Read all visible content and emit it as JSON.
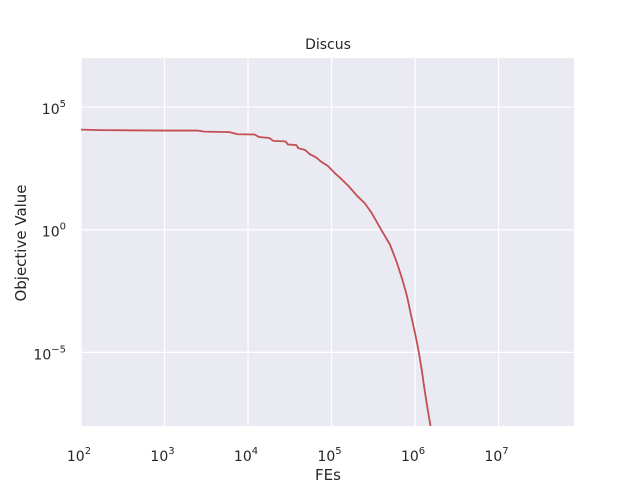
{
  "chart_data": {
    "type": "line",
    "title": "Discus",
    "xlabel": "FEs",
    "ylabel": "Objective Value",
    "x_scale": "log",
    "y_scale": "log",
    "xlim": [
      100,
      80000000
    ],
    "ylim": [
      1e-08,
      10000000.0
    ],
    "x_ticks": [
      {
        "base": "10",
        "exp": "2",
        "value": 100
      },
      {
        "base": "10",
        "exp": "3",
        "value": 1000
      },
      {
        "base": "10",
        "exp": "4",
        "value": 10000
      },
      {
        "base": "10",
        "exp": "5",
        "value": 100000
      },
      {
        "base": "10",
        "exp": "6",
        "value": 1000000
      },
      {
        "base": "10",
        "exp": "7",
        "value": 10000000
      }
    ],
    "y_ticks": [
      {
        "base": "10",
        "exp": "5",
        "value": 100000
      },
      {
        "base": "10",
        "exp": "0",
        "value": 1
      },
      {
        "base": "10",
        "exp": "−5",
        "value": 1e-05
      }
    ],
    "grid": true,
    "colors": {
      "plot_bg": "#eaeaf2",
      "grid": "#ffffff",
      "series": "#c44e52",
      "text": "#262626"
    },
    "series": [
      {
        "color": "#c44e52",
        "points": [
          [
            100,
            12000
          ],
          [
            170,
            11500
          ],
          [
            1000,
            11000
          ],
          [
            2500,
            11000
          ],
          [
            3000,
            10000
          ],
          [
            6000,
            9500
          ],
          [
            7500,
            7800
          ],
          [
            12000,
            7600
          ],
          [
            13500,
            6000
          ],
          [
            18000,
            5500
          ],
          [
            20000,
            4200
          ],
          [
            28000,
            4000
          ],
          [
            30000,
            3000
          ],
          [
            38000,
            2800
          ],
          [
            40000,
            2100
          ],
          [
            48000,
            1800
          ],
          [
            55000,
            1200
          ],
          [
            65000,
            900
          ],
          [
            75000,
            600
          ],
          [
            90000,
            400
          ],
          [
            110000,
            200
          ],
          [
            130000,
            120
          ],
          [
            160000,
            60
          ],
          [
            200000,
            25
          ],
          [
            250000,
            12
          ],
          [
            300000,
            5
          ],
          [
            350000,
            2
          ],
          [
            400000,
            0.9
          ],
          [
            500000,
            0.25
          ],
          [
            600000,
            0.05
          ],
          [
            700000,
            0.01
          ],
          [
            800000,
            0.002
          ],
          [
            900000,
            0.0003
          ],
          [
            1000000,
            6e-05
          ],
          [
            1100000,
            1.2e-05
          ],
          [
            1200000,
            2e-06
          ],
          [
            1300000,
            3e-07
          ],
          [
            1400000,
            6e-08
          ],
          [
            1500000,
            1.5e-08
          ],
          [
            1600000,
            4e-09
          ]
        ]
      }
    ]
  }
}
